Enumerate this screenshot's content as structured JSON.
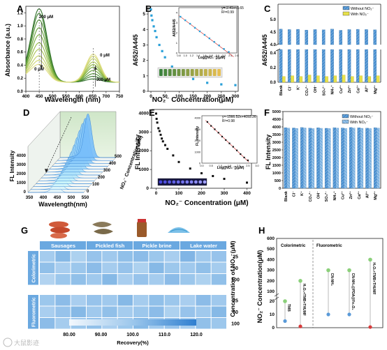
{
  "panels": {
    "A": {
      "letter": "A",
      "ylabel": "Absorbance (a.u.)",
      "xlabel": "Wavelength (nm)",
      "x_ticks": [
        "400",
        "450",
        "500",
        "550",
        "600",
        "650",
        "700",
        "750"
      ],
      "y_ticks": [
        "0.0",
        "0.2",
        "0.4",
        "0.6",
        "0.8",
        "1.0",
        "1.2"
      ],
      "annotations": {
        "top_left": "300 μM",
        "bottom_left": "0 μM",
        "top_right": "0 μM",
        "bottom_right": "300 μM"
      }
    },
    "B": {
      "letter": "B",
      "ylabel": "A652/A445",
      "xlabel": "NO₂⁻ Concentration(μM)",
      "x_ticks": [
        "0",
        "50",
        "100",
        "150",
        "200",
        "250",
        "300"
      ],
      "y_ticks": [
        "0",
        "1",
        "2",
        "3",
        "4",
        "5"
      ],
      "inset": {
        "ylabel": "A652/A445",
        "xlabel": "Log([NO₂⁻])(μM)",
        "equation": "y=-2.41x+5.65",
        "r2": "R²=0.99",
        "x_ticks": [
          "0.8",
          "1.0",
          "1.2",
          "1.4",
          "1.6",
          "1.8",
          "2.0",
          "2.2",
          "2.4",
          "2.6"
        ],
        "y_ticks": [
          "0",
          "1",
          "2",
          "3",
          "4"
        ]
      }
    },
    "C": {
      "letter": "C",
      "ylabel": "A652/A445",
      "legend": [
        "Without NO₂⁻",
        "With NO₂⁻"
      ],
      "y_ticks_top": [
        "4.0",
        "4.5",
        "5.0"
      ],
      "y_ticks_bottom": [
        "0.0",
        "0.2",
        "0.4"
      ],
      "categories": [
        "Blank",
        "Cl⁻",
        "K⁺",
        "CO₃²⁻",
        "OH⁻",
        "SO₄²⁻",
        "NH₄⁺",
        "Cu²⁺",
        "Zn²⁺",
        "Ca²⁺",
        "Al³⁺",
        "Mg²⁺"
      ]
    },
    "D": {
      "letter": "D",
      "zlabel": "FL Intensity",
      "xlabel": "Wavelength(nm)",
      "depth_label": "NO₂⁻ Concentration(μM)",
      "x_ticks": [
        "350",
        "400",
        "450",
        "500",
        "550"
      ],
      "z_ticks": [
        "0",
        "1000",
        "2000",
        "3000",
        "4000"
      ],
      "depth_ticks": [
        "0",
        "100",
        "200",
        "300",
        "400",
        "500"
      ]
    },
    "E": {
      "letter": "E",
      "ylabel": "FL Intensity",
      "xlabel": "NO₂⁻ Concentration (μM)",
      "x_ticks": [
        "0",
        "100",
        "200",
        "300",
        "400"
      ],
      "y_ticks": [
        "0",
        "1000",
        "2000",
        "3000",
        "4000"
      ],
      "inset": {
        "ylabel": "FL Intensity",
        "xlabel": "Log([NO₂⁻])(μM)",
        "equation": "y=-1566.52x+4093.26",
        "r2": "R²=0.98",
        "x_ticks": [
          "0.0",
          "0.5",
          "1.0",
          "1.5",
          "2.0",
          "2.5",
          "3.0"
        ],
        "y_ticks": [
          "0",
          "1000",
          "2000",
          "3000",
          "4000"
        ]
      }
    },
    "F": {
      "letter": "F",
      "ylabel": "FL Intensity",
      "legend": [
        "Without NO₂⁻",
        "With NO₂⁻"
      ],
      "y_ticks": [
        "0",
        "500",
        "1000",
        "1500",
        "2000",
        "2500",
        "3000",
        "3500",
        "4000",
        "4500",
        "5000"
      ],
      "categories": [
        "Blank",
        "Cl⁻",
        "K⁺",
        "CO₃²⁻",
        "OH⁻",
        "SO₄²⁻",
        "NH₄⁺",
        "Cu²⁺",
        "Zn²⁺",
        "Ca²⁺",
        "Al³⁺",
        "Mg²⁺"
      ]
    },
    "G": {
      "letter": "G",
      "columns": [
        "Sausages",
        "Pickled fish",
        "Pickle brine",
        "Lake water"
      ],
      "rows": [
        "Colorimetric",
        "Fluorometric"
      ],
      "row_levels": [
        "25",
        "50",
        "100"
      ],
      "side_label": "Concentration of NO₂⁻(μM)",
      "colorbar_ticks": [
        "80.00",
        "90.00",
        "100.0",
        "110.0",
        "120.0"
      ],
      "colorbar_label": "Recovery(%)"
    },
    "H": {
      "letter": "H",
      "ylabel": "NO₂⁻ Concentration(μM)",
      "section_left": "Colorimetric",
      "section_right": "Fluorometric",
      "y_ticks": [
        "0",
        "10",
        "20",
        "100",
        "200",
        "300",
        "400",
        "500",
        "600"
      ],
      "methods": [
        "TMB",
        "H₂O₂+TMB+THUMF",
        "CN-NH₂",
        "CN-NH₂@PDA@Fe₃O₄",
        "H₂O₂+TMB+THUMF"
      ]
    }
  },
  "watermark": "大鼠影迹",
  "colors": {
    "axis": "#222222",
    "bar_without": "#4a8fcf",
    "bar_with": "#e8e24a",
    "heat_high": "#bcd6ef",
    "heat_low": "#5aa2e0"
  },
  "chart_data": [
    {
      "type": "line",
      "panel": "A",
      "xlabel": "Wavelength (nm)",
      "ylabel": "Absorbance (a.u.)",
      "xlim": [
        400,
        750
      ],
      "ylim": [
        0,
        1.3
      ],
      "series": [
        {
          "peak445": 1.12,
          "peak652": 0.05
        },
        {
          "peak445": 1.05,
          "peak652": 0.09
        },
        {
          "peak445": 0.95,
          "peak652": 0.13
        },
        {
          "peak445": 0.83,
          "peak652": 0.18
        },
        {
          "peak445": 0.72,
          "peak652": 0.23
        },
        {
          "peak445": 0.6,
          "peak652": 0.27
        },
        {
          "peak445": 0.5,
          "peak652": 0.31
        },
        {
          "peak445": 0.4,
          "peak652": 0.36
        },
        {
          "peak445": 0.33,
          "peak652": 0.4
        },
        {
          "peak445": 0.27,
          "peak652": 0.43
        }
      ]
    },
    {
      "type": "scatter",
      "panel": "B",
      "xlabel": "NO₂⁻ Concentration(μM)",
      "ylabel": "A652/A445",
      "xlim": [
        -10,
        310
      ],
      "ylim": [
        0,
        5.5
      ],
      "x": [
        0,
        2,
        5,
        10,
        15,
        20,
        30,
        40,
        50,
        75,
        100,
        150,
        200,
        250,
        300
      ],
      "y": [
        5.3,
        4.9,
        4.6,
        4.2,
        3.9,
        3.5,
        3.0,
        2.6,
        2.2,
        1.6,
        1.2,
        0.8,
        0.55,
        0.45,
        0.4
      ]
    },
    {
      "type": "scatter",
      "panel": "B-inset",
      "xlabel": "Log([NO₂⁻])(μM)",
      "ylabel": "A652/A445",
      "xlim": [
        0.8,
        2.6
      ],
      "ylim": [
        0,
        4.5
      ],
      "x": [
        0.85,
        1.0,
        1.15,
        1.3,
        1.45,
        1.6,
        1.75,
        1.9,
        2.05,
        2.2,
        2.35
      ],
      "y": [
        3.6,
        3.25,
        2.9,
        2.5,
        2.15,
        1.8,
        1.45,
        1.1,
        0.75,
        0.4,
        0.1
      ],
      "fit": {
        "slope": -2.41,
        "intercept": 5.65
      }
    },
    {
      "type": "bar",
      "panel": "C",
      "categories": [
        "Blank",
        "Cl⁻",
        "K⁺",
        "CO₃²⁻",
        "OH⁻",
        "SO₄²⁻",
        "NH₄⁺",
        "Cu²⁺",
        "Zn²⁺",
        "Ca²⁺",
        "Al³⁺",
        "Mg²⁺"
      ],
      "series": [
        {
          "name": "Without NO₂⁻",
          "values": [
            4.62,
            4.6,
            4.61,
            4.58,
            4.6,
            4.59,
            4.62,
            4.57,
            4.6,
            4.61,
            4.6,
            4.59
          ]
        },
        {
          "name": "With NO₂⁻",
          "values": [
            0.08,
            0.09,
            0.08,
            0.1,
            0.09,
            0.08,
            0.09,
            0.1,
            0.08,
            0.09,
            0.08,
            0.09
          ]
        }
      ]
    },
    {
      "type": "area",
      "panel": "D",
      "xlabel": "Wavelength(nm)",
      "ylabel": "FL Intensity",
      "depth_values": [
        0,
        10,
        20,
        50,
        100,
        150,
        200,
        250,
        300,
        350,
        400,
        450,
        500
      ],
      "peak_values": [
        4000,
        3850,
        3650,
        3300,
        2900,
        2500,
        2150,
        1850,
        1600,
        1350,
        1150,
        950,
        800
      ]
    },
    {
      "type": "scatter",
      "panel": "E",
      "xlabel": "NO₂⁻ Concentration (μM)",
      "ylabel": "FL Intensity",
      "xlim": [
        -20,
        420
      ],
      "ylim": [
        0,
        4200
      ],
      "x": [
        0,
        2,
        5,
        10,
        15,
        20,
        25,
        30,
        40,
        50,
        75,
        100,
        150,
        200,
        250,
        300,
        400
      ],
      "y": [
        3980,
        3700,
        3500,
        3200,
        3050,
        2850,
        2650,
        2500,
        2300,
        2100,
        1750,
        1400,
        1050,
        800,
        650,
        500,
        300
      ]
    },
    {
      "type": "scatter",
      "panel": "E-inset",
      "xlabel": "Log([NO₂⁻])(μM)",
      "ylabel": "FL Intensity",
      "xlim": [
        0,
        3
      ],
      "ylim": [
        0,
        4200
      ],
      "x": [
        0.3,
        0.5,
        0.7,
        0.9,
        1.1,
        1.3,
        1.5,
        1.7,
        1.9,
        2.1,
        2.3,
        2.5
      ],
      "y": [
        3650,
        3300,
        3000,
        2700,
        2350,
        2050,
        1750,
        1450,
        1130,
        800,
        500,
        250
      ],
      "fit": {
        "slope": -1566.52,
        "intercept": 4093.26
      }
    },
    {
      "type": "bar",
      "panel": "F",
      "categories": [
        "Blank",
        "Cl⁻",
        "K⁺",
        "CO₃²⁻",
        "OH⁻",
        "SO₄²⁻",
        "NH₄⁺",
        "Cu²⁺",
        "Zn²⁺",
        "Ca²⁺",
        "Al³⁺",
        "Mg²⁺"
      ],
      "series": [
        {
          "name": "Without NO₂⁻",
          "values": [
            3950,
            3930,
            3960,
            3920,
            3940,
            3910,
            3950,
            3930,
            3960,
            3940,
            3920,
            3950
          ]
        },
        {
          "name": "With NO₂⁻",
          "values": [
            3920,
            3900,
            3930,
            3890,
            3910,
            3890,
            3920,
            3900,
            3930,
            3910,
            3890,
            3920
          ]
        }
      ]
    },
    {
      "type": "heatmap",
      "panel": "G",
      "columns": [
        "Sausages",
        "Pickled fish",
        "Pickle brine",
        "Lake water"
      ],
      "colorbar_range": [
        80,
        120
      ],
      "colorimetric": [
        [
          98,
          104,
          96,
          101,
          99,
          102,
          103,
          100,
          97,
          105,
          99,
          101
        ],
        [
          102,
          97,
          100,
          103,
          98,
          101,
          96,
          104,
          100,
          99,
          102,
          98
        ],
        [
          95,
          100,
          102,
          99,
          104,
          97,
          101,
          98,
          103,
          100,
          96,
          102
        ]
      ],
      "fluorometric": [
        [
          100,
          103,
          97,
          101,
          99,
          104,
          98,
          102,
          100,
          97,
          103,
          99
        ],
        [
          97,
          101,
          104,
          99,
          102,
          98,
          100,
          103,
          96,
          101,
          99,
          104
        ],
        [
          103,
          98,
          100,
          102,
          97,
          100,
          104,
          99,
          101,
          98,
          102,
          100
        ]
      ]
    },
    {
      "type": "scatter",
      "panel": "H",
      "ylabel": "NO₂⁻ Concentration(μM)",
      "methods": [
        "TMB",
        "H₂O₂+TMB+THUMF",
        "CN-NH₂",
        "CN-NH₂@PDA@Fe₃O₄",
        "H₂O₂+TMB+THUMF"
      ],
      "upper": [
        20,
        200,
        300,
        300,
        400
      ],
      "lower": [
        5,
        1,
        10,
        10,
        0.5
      ]
    }
  ]
}
